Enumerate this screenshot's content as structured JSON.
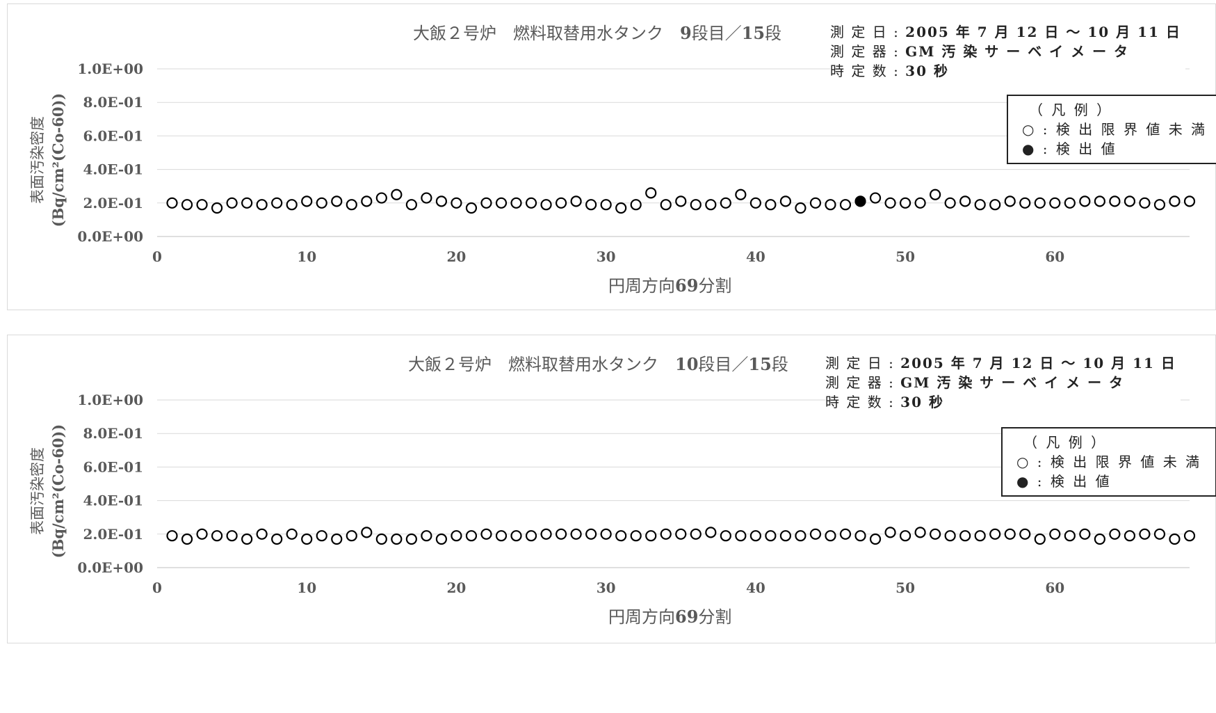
{
  "chart_data": [
    {
      "type": "scatter",
      "title_prefix": "大飯２号炉　燃料取替用水タンク　",
      "title_bold": "9",
      "title_suffix": "段目／",
      "title_bold2": "15",
      "title_suffix2": "段",
      "ylabel_line1": "表面汚染密度",
      "ylabel_line2": "(Bq/cm²(Co-60))",
      "xlabel_prefix": "円周方向",
      "xlabel_bold": "69",
      "xlabel_suffix": "分割",
      "y_ticks": [
        "1.0E+00",
        "8.0E-01",
        "6.0E-01",
        "4.0E-01",
        "2.0E-01",
        "0.0E+00"
      ],
      "x_ticks": [
        "0",
        "10",
        "20",
        "30",
        "40",
        "50",
        "60"
      ],
      "xlim": [
        0,
        69
      ],
      "ylim": [
        0,
        1.0
      ],
      "info": {
        "line1_label": "測 定 日 : ",
        "line1_value": "2005 年 7 月 12 日 ～ 10 月 11 日",
        "line2_label": "測 定 器 : ",
        "line2_value": "GM 汚 染 サ ー ベ イ メ ー タ",
        "line3_label": "時 定 数 : ",
        "line3_value": "30 秒"
      },
      "legend": {
        "title": "（ 凡 例 ）",
        "open_marker": "○",
        "open_label": " : 検 出 限 界 値 未 満",
        "filled_marker": "●",
        "filled_label": " : 検 出 値"
      },
      "series": [
        {
          "x": [
            1,
            2,
            3,
            4,
            5,
            6,
            7,
            8,
            9,
            10,
            11,
            12,
            13,
            14,
            15,
            16,
            17,
            18,
            19,
            20,
            21,
            22,
            23,
            24,
            25,
            26,
            27,
            28,
            29,
            30,
            31,
            32,
            33,
            34,
            35,
            36,
            37,
            38,
            39,
            40,
            41,
            42,
            43,
            44,
            45,
            46,
            47,
            48,
            49,
            50,
            51,
            52,
            53,
            54,
            55,
            56,
            57,
            58,
            59,
            60,
            61,
            62,
            63,
            64,
            65,
            66,
            67,
            68,
            69
          ],
          "values": [
            0.2,
            0.19,
            0.19,
            0.17,
            0.2,
            0.2,
            0.19,
            0.2,
            0.19,
            0.21,
            0.2,
            0.21,
            0.19,
            0.21,
            0.23,
            0.25,
            0.19,
            0.23,
            0.21,
            0.2,
            0.17,
            0.2,
            0.2,
            0.2,
            0.2,
            0.19,
            0.2,
            0.21,
            0.19,
            0.19,
            0.17,
            0.19,
            0.26,
            0.19,
            0.21,
            0.19,
            0.19,
            0.2,
            0.25,
            0.2,
            0.19,
            0.21,
            0.17,
            0.2,
            0.19,
            0.19,
            0.21,
            0.23,
            0.2,
            0.2,
            0.2,
            0.25,
            0.2,
            0.21,
            0.19,
            0.19,
            0.21,
            0.2,
            0.2,
            0.2,
            0.2,
            0.21,
            0.21,
            0.21,
            0.21,
            0.2,
            0.19,
            0.21,
            0.21
          ],
          "detected_x": [
            47
          ]
        }
      ]
    },
    {
      "type": "scatter",
      "title_prefix": "大飯２号炉　燃料取替用水タンク　",
      "title_bold": "10",
      "title_suffix": "段目／",
      "title_bold2": "15",
      "title_suffix2": "段",
      "ylabel_line1": "表面汚染密度",
      "ylabel_line2": "(Bq/cm²(Co-60))",
      "xlabel_prefix": "円周方向",
      "xlabel_bold": "69",
      "xlabel_suffix": "分割",
      "y_ticks": [
        "1.0E+00",
        "8.0E-01",
        "6.0E-01",
        "4.0E-01",
        "2.0E-01",
        "0.0E+00"
      ],
      "x_ticks": [
        "0",
        "10",
        "20",
        "30",
        "40",
        "50",
        "60"
      ],
      "xlim": [
        0,
        69
      ],
      "ylim": [
        0,
        1.0
      ],
      "info": {
        "line1_label": "測 定 日 : ",
        "line1_value": "2005 年 7 月 12 日 ～ 10 月 11 日",
        "line2_label": "測 定 器 : ",
        "line2_value": "GM 汚 染 サ ー ベ イ メ ー タ",
        "line3_label": "時 定 数 : ",
        "line3_value": "30 秒"
      },
      "legend": {
        "title": "（ 凡 例 ）",
        "open_marker": "○",
        "open_label": " : 検 出 限 界 値 未 満",
        "filled_marker": "●",
        "filled_label": " : 検 出 値"
      },
      "series": [
        {
          "x": [
            1,
            2,
            3,
            4,
            5,
            6,
            7,
            8,
            9,
            10,
            11,
            12,
            13,
            14,
            15,
            16,
            17,
            18,
            19,
            20,
            21,
            22,
            23,
            24,
            25,
            26,
            27,
            28,
            29,
            30,
            31,
            32,
            33,
            34,
            35,
            36,
            37,
            38,
            39,
            40,
            41,
            42,
            43,
            44,
            45,
            46,
            47,
            48,
            49,
            50,
            51,
            52,
            53,
            54,
            55,
            56,
            57,
            58,
            59,
            60,
            61,
            62,
            63,
            64,
            65,
            66,
            67,
            68,
            69
          ],
          "values": [
            0.19,
            0.17,
            0.2,
            0.19,
            0.19,
            0.17,
            0.2,
            0.17,
            0.2,
            0.17,
            0.19,
            0.17,
            0.19,
            0.21,
            0.17,
            0.17,
            0.17,
            0.19,
            0.17,
            0.19,
            0.19,
            0.2,
            0.19,
            0.19,
            0.19,
            0.2,
            0.2,
            0.2,
            0.2,
            0.2,
            0.19,
            0.19,
            0.19,
            0.2,
            0.2,
            0.2,
            0.21,
            0.19,
            0.19,
            0.19,
            0.19,
            0.19,
            0.19,
            0.2,
            0.19,
            0.2,
            0.19,
            0.17,
            0.21,
            0.19,
            0.21,
            0.2,
            0.19,
            0.19,
            0.19,
            0.2,
            0.2,
            0.2,
            0.17,
            0.2,
            0.19,
            0.2,
            0.17,
            0.2,
            0.19,
            0.2,
            0.2,
            0.17,
            0.19
          ],
          "detected_x": []
        }
      ]
    }
  ]
}
